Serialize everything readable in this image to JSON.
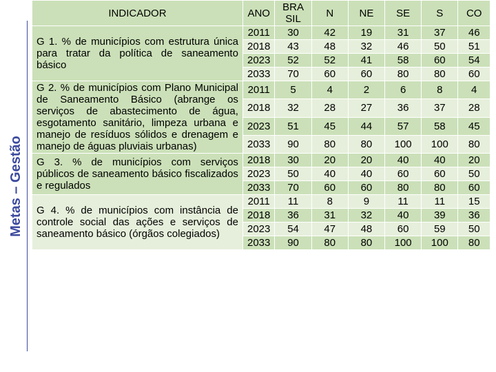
{
  "side_label": "Metas – Gestão",
  "header": {
    "indicador": "INDICADOR",
    "ano": "ANO",
    "brasil": "BRA SIL",
    "n": "N",
    "ne": "NE",
    "se": "SE",
    "s": "S",
    "co": "CO"
  },
  "row_colors": {
    "even": "#cbe0b8",
    "odd": "#e6efdb"
  },
  "groups": [
    {
      "indicador": "G 1. % de municípios com estrutura única para tratar da política de saneamento básico",
      "rows": [
        {
          "ano": "2011",
          "bra": "30",
          "n": "42",
          "ne": "19",
          "se": "31",
          "s": "37",
          "co": "46"
        },
        {
          "ano": "2018",
          "bra": "43",
          "n": "48",
          "ne": "32",
          "se": "46",
          "s": "50",
          "co": "51"
        },
        {
          "ano": "2023",
          "bra": "52",
          "n": "52",
          "ne": "41",
          "se": "58",
          "s": "60",
          "co": "54"
        },
        {
          "ano": "2033",
          "bra": "70",
          "n": "60",
          "ne": "60",
          "se": "80",
          "s": "80",
          "co": "60"
        }
      ]
    },
    {
      "indicador": "G 2. % de municípios com Plano Municipal de Saneamento Básico (abrange os serviços de abastecimento de água, esgotamento sanitário, limpeza urbana e manejo de resíduos sólidos e drenagem e manejo de águas pluviais urbanas)",
      "rows": [
        {
          "ano": "2011",
          "bra": "5",
          "n": "4",
          "ne": "2",
          "se": "6",
          "s": "8",
          "co": "4"
        },
        {
          "ano": "2018",
          "bra": "32",
          "n": "28",
          "ne": "27",
          "se": "36",
          "s": "37",
          "co": "28"
        },
        {
          "ano": "2023",
          "bra": "51",
          "n": "45",
          "ne": "44",
          "se": "57",
          "s": "58",
          "co": "45"
        },
        {
          "ano": "2033",
          "bra": "90",
          "n": "80",
          "ne": "80",
          "se": "100",
          "s": "100",
          "co": "80"
        }
      ]
    },
    {
      "indicador": "G 3. % de municípios com serviços públicos de saneamento básico fiscalizados e regulados",
      "rows": [
        {
          "ano": "2018",
          "bra": "30",
          "n": "20",
          "ne": "20",
          "se": "40",
          "s": "40",
          "co": "20"
        },
        {
          "ano": "2023",
          "bra": "50",
          "n": "40",
          "ne": "40",
          "se": "60",
          "s": "60",
          "co": "50"
        },
        {
          "ano": "2033",
          "bra": "70",
          "n": "60",
          "ne": "60",
          "se": "80",
          "s": "80",
          "co": "60"
        }
      ]
    },
    {
      "indicador": "G 4. % de municípios com instância de controle social das ações e serviços de saneamento básico (órgãos colegiados)",
      "rows": [
        {
          "ano": "2011",
          "bra": "11",
          "n": "8",
          "ne": "9",
          "se": "11",
          "s": "11",
          "co": "15"
        },
        {
          "ano": "2018",
          "bra": "36",
          "n": "31",
          "ne": "32",
          "se": "40",
          "s": "39",
          "co": "36"
        },
        {
          "ano": "2023",
          "bra": "54",
          "n": "47",
          "ne": "48",
          "se": "60",
          "s": "59",
          "co": "50"
        },
        {
          "ano": "2033",
          "bra": "90",
          "n": "80",
          "ne": "80",
          "se": "100",
          "s": "100",
          "co": "80"
        }
      ]
    }
  ]
}
